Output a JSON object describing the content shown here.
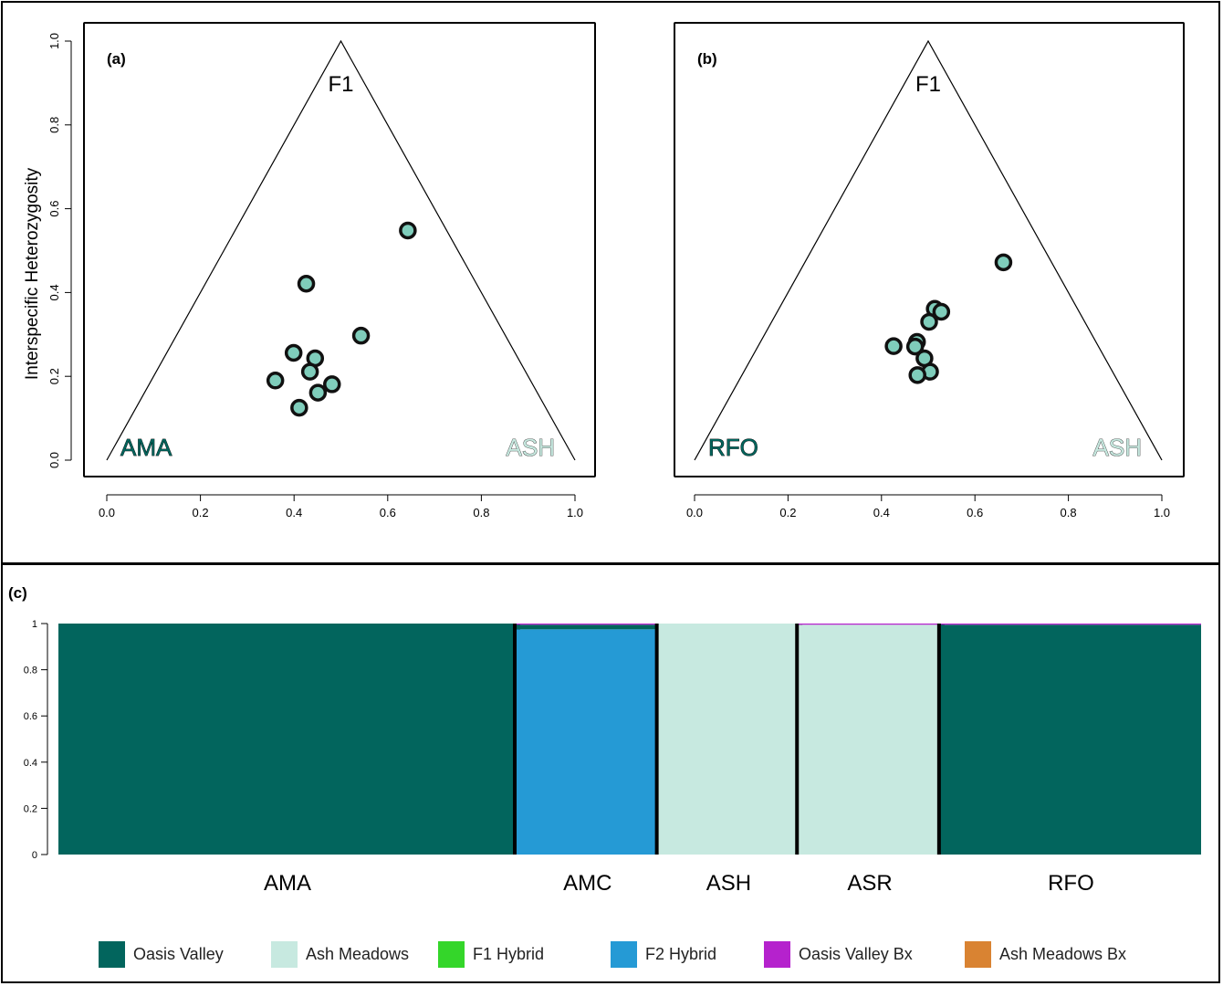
{
  "chart_data": [
    {
      "type": "scatter",
      "panel_label": "(a)",
      "ylabel": "Interspecific Heterozygosity",
      "xlim": [
        0,
        1
      ],
      "ylim": [
        0,
        1
      ],
      "xticks": [
        "0.0",
        "0.2",
        "0.4",
        "0.6",
        "0.8",
        "1.0"
      ],
      "yticks": [
        "0.0",
        "0.2",
        "0.4",
        "0.6",
        "0.8",
        "1.0"
      ],
      "triangle_labels": {
        "apex": "F1",
        "left": "AMA",
        "right": "ASH"
      },
      "points": [
        {
          "x": 0.643,
          "y": 0.548
        },
        {
          "x": 0.426,
          "y": 0.421
        },
        {
          "x": 0.543,
          "y": 0.297
        },
        {
          "x": 0.399,
          "y": 0.256
        },
        {
          "x": 0.445,
          "y": 0.243
        },
        {
          "x": 0.434,
          "y": 0.211
        },
        {
          "x": 0.36,
          "y": 0.19
        },
        {
          "x": 0.481,
          "y": 0.181
        },
        {
          "x": 0.451,
          "y": 0.161
        },
        {
          "x": 0.411,
          "y": 0.125
        }
      ],
      "point_color": "#7fcdbb"
    },
    {
      "type": "scatter",
      "panel_label": "(b)",
      "xlim": [
        0,
        1
      ],
      "ylim": [
        0,
        1
      ],
      "xticks": [
        "0.0",
        "0.2",
        "0.4",
        "0.6",
        "0.8",
        "1.0"
      ],
      "triangle_labels": {
        "apex": "F1",
        "left": "RFO",
        "right": "ASH"
      },
      "points": [
        {
          "x": 0.661,
          "y": 0.472
        },
        {
          "x": 0.514,
          "y": 0.361
        },
        {
          "x": 0.528,
          "y": 0.354
        },
        {
          "x": 0.502,
          "y": 0.33
        },
        {
          "x": 0.476,
          "y": 0.282
        },
        {
          "x": 0.426,
          "y": 0.272
        },
        {
          "x": 0.472,
          "y": 0.271
        },
        {
          "x": 0.492,
          "y": 0.243
        },
        {
          "x": 0.504,
          "y": 0.211
        },
        {
          "x": 0.477,
          "y": 0.203
        }
      ],
      "point_color": "#7fcdbb"
    },
    {
      "type": "bar",
      "stacked": true,
      "panel_label": "(c)",
      "ylim": [
        0,
        1
      ],
      "yticks": [
        "0",
        "0.2",
        "0.4",
        "0.6",
        "0.8",
        "1"
      ],
      "categories": [
        "AMA",
        "AMC",
        "ASH",
        "ASR",
        "RFO"
      ],
      "series": [
        {
          "name": "Oasis Valley",
          "color": "#02655d",
          "values": [
            1.0,
            0.02,
            0.0,
            0.0,
            0.995
          ]
        },
        {
          "name": "Ash Meadows",
          "color": "#c7e9e0",
          "values": [
            0.0,
            0.0,
            1.0,
            0.995,
            0.0
          ]
        },
        {
          "name": "F1 Hybrid",
          "color": "#34d62a",
          "values": [
            0.0,
            0.0,
            0.0,
            0.0,
            0.0
          ]
        },
        {
          "name": "F2 Hybrid",
          "color": "#259ad5",
          "values": [
            0.0,
            0.975,
            0.0,
            0.0,
            0.0
          ]
        },
        {
          "name": "Oasis Valley Bx",
          "color": "#b522cd",
          "values": [
            0.0,
            0.005,
            0.0,
            0.005,
            0.005
          ]
        },
        {
          "name": "Ash Meadows Bx",
          "color": "#d98332",
          "values": [
            0.0,
            0.0,
            0.0,
            0.0,
            0.0
          ]
        }
      ],
      "legend_position": "bottom"
    }
  ]
}
